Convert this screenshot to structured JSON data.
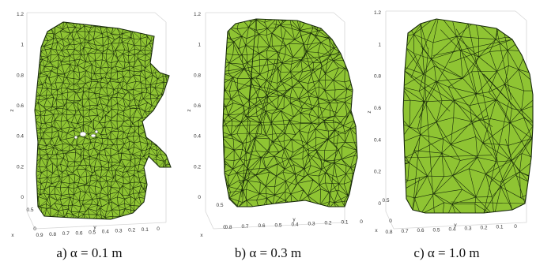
{
  "colors": {
    "mesh_fill": "#8fc433",
    "mesh_edge": "#17290a",
    "axis_box": "#d6d6d6"
  },
  "panels": [
    {
      "caption": "a) α = 0.1 m",
      "z_ticks": [
        "1.2",
        "1",
        "0.8",
        "0.6",
        "0.4",
        "0.2",
        "0"
      ],
      "z_label": "z",
      "y_ticks": [
        "0.9",
        "0.8",
        "0.7",
        "0.6",
        "0.5",
        "0.4",
        "0.3",
        "0.2",
        "0.1",
        "0"
      ],
      "y_label": "y",
      "x_ticks": [
        "0.5",
        "0"
      ],
      "x_label": "x",
      "mesh_density": "fine",
      "has_holes": true
    },
    {
      "caption": "b) α = 0.3 m",
      "z_ticks": [
        "1.2",
        "1",
        "0.8",
        "0.6",
        "0.4",
        "0.2",
        "0"
      ],
      "z_label": "z",
      "y_ticks": [
        "0.8",
        "0.7",
        "0.6",
        "0.5",
        "0.4",
        "0.3",
        "0.2",
        "0.1",
        "0"
      ],
      "y_label": "y",
      "x_ticks": [
        "0.5",
        "0"
      ],
      "x_label": "x",
      "mesh_density": "medium",
      "has_holes": false
    },
    {
      "caption": "c) α = 1.0 m",
      "z_ticks": [
        "1.2",
        "1",
        "0.8",
        "0.6",
        "0.4",
        "0.2",
        "0"
      ],
      "z_label": "z",
      "y_ticks": [
        "0.8",
        "0.7",
        "0.6",
        "0.5",
        "0.4",
        "0.3",
        "0.2",
        "0.1",
        "0"
      ],
      "y_label": "y",
      "x_ticks": [
        "0.5",
        "0"
      ],
      "x_label": "x",
      "mesh_density": "coarse",
      "has_holes": false
    }
  ]
}
